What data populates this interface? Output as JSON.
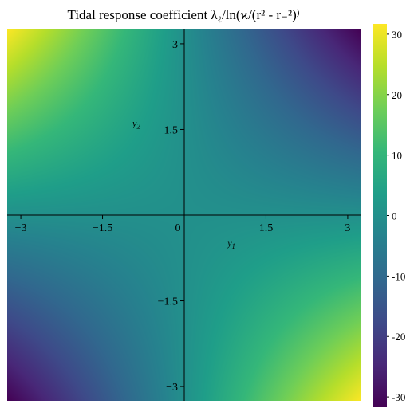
{
  "chart_data": {
    "type": "heatmap",
    "title": "Tidal response coefficient λ",
    "title_sub": "ℓ",
    "title_tail": "/ln(ϰ/(r² - r₋²)",
    "title_close": ")",
    "xlabel": "y",
    "xlabel_sub": "1",
    "ylabel": "y",
    "ylabel_sub": "2",
    "xlim": [
      -3.25,
      3.25
    ],
    "ylim": [
      -3.25,
      3.25
    ],
    "x_ticks": [
      {
        "value": -3,
        "label": "−3"
      },
      {
        "value": -1.5,
        "label": "−1.5"
      },
      {
        "value": 1.5,
        "label": "1.5"
      },
      {
        "value": 3,
        "label": "3"
      }
    ],
    "y_ticks": [
      {
        "value": 3,
        "label": "3"
      },
      {
        "value": 1.5,
        "label": "1.5"
      },
      {
        "value": -1.5,
        "label": "−1.5"
      },
      {
        "value": -3,
        "label": "−3"
      }
    ],
    "origin_label": "0",
    "field": {
      "expression": "-3 * y1 * y2",
      "corner_values": {
        "top_left": 31.7,
        "top_right": -31.7,
        "bottom_left": -31.7,
        "bottom_right": 31.7
      }
    },
    "colorbar": {
      "colormap": "viridis",
      "range": [
        -31.7,
        31.7
      ],
      "ticks": [
        {
          "value": 30,
          "label": "30"
        },
        {
          "value": 20,
          "label": "20"
        },
        {
          "value": 10,
          "label": "10"
        },
        {
          "value": 0,
          "label": "0"
        },
        {
          "value": -10,
          "label": "-10"
        },
        {
          "value": -20,
          "label": "-20"
        },
        {
          "value": -30,
          "label": "-30"
        }
      ]
    },
    "grid": false,
    "legend": "none"
  },
  "colors": {
    "viridis": [
      "#440154",
      "#482878",
      "#3e4a89",
      "#31688e",
      "#26828e",
      "#1f9e89",
      "#35b779",
      "#6ece58",
      "#b5de2b",
      "#fde725"
    ],
    "axis": "#000000"
  }
}
